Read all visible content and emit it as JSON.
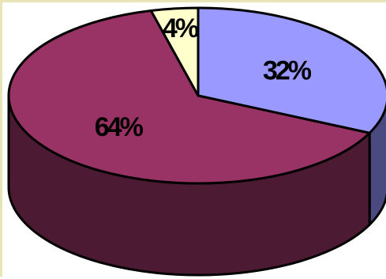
{
  "chart_data": {
    "type": "pie",
    "style": "3d",
    "title": "",
    "legend": "none",
    "slices": [
      {
        "label": "32%",
        "value": 32,
        "color": "#9999ff",
        "side_color": "#4a4a80"
      },
      {
        "label": "64%",
        "value": 64,
        "color": "#993366",
        "side_color": "#4d1a33"
      },
      {
        "label": "4%",
        "value": 4,
        "color": "#ffffcc",
        "side_color": "#808066"
      }
    ]
  },
  "colors": {
    "outline": "#000000",
    "frame": "#e8e6b8",
    "background": "#ffffff"
  }
}
